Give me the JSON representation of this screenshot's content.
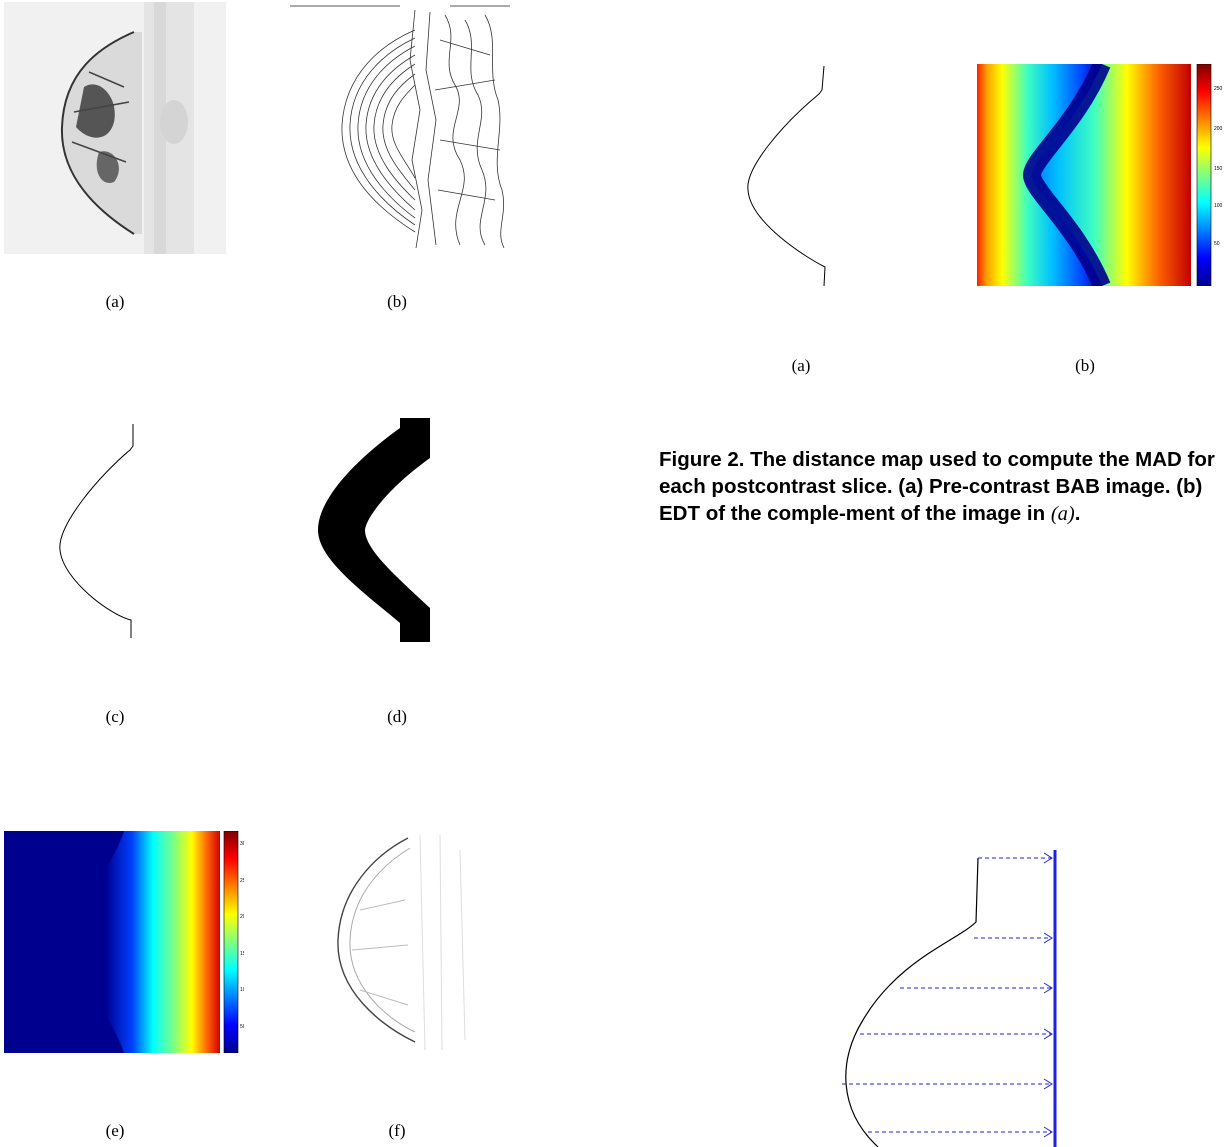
{
  "left_figure": {
    "captions": [
      "(a)",
      "(b)",
      "(c)",
      "(d)",
      "(e)",
      "(f)"
    ],
    "colorbar_ticks": [
      "300",
      "250",
      "200",
      "150",
      "100",
      "50"
    ]
  },
  "right_figure": {
    "captions": [
      "(a)",
      "(b)"
    ],
    "colorbar_ticks": [
      "250",
      "200",
      "150",
      "100",
      "50"
    ],
    "caption_label": "Figure 2.",
    "caption_text": "The distance map used to compute the MAD for each postcontrast slice. (a) Pre-contrast BAB image. (b) EDT of the comple-ment of the image in",
    "caption_ref": "(a)",
    "caption_end": "."
  },
  "colors": {
    "jet_dark_blue": "#00008f",
    "jet_red": "#800000",
    "arrow_blue": "#2020e0"
  }
}
